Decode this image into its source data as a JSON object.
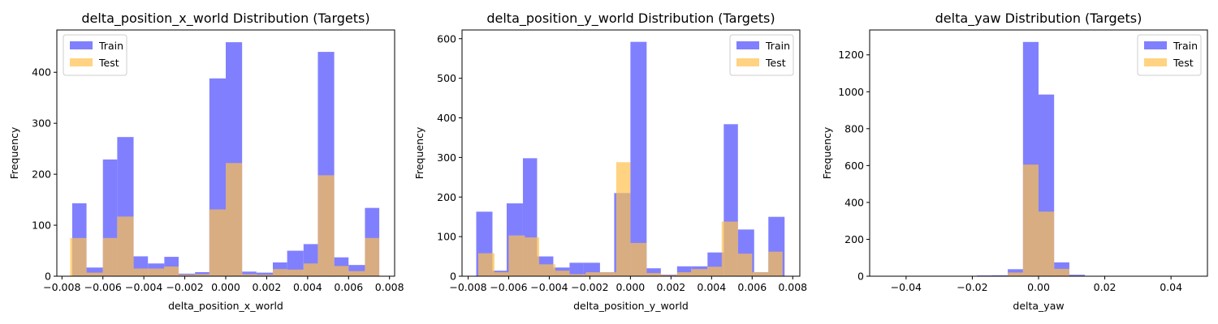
{
  "chart_data": [
    {
      "type": "bar",
      "title": "delta_position_x_world Distribution (Targets)",
      "xlabel": "delta_position_x_world",
      "ylabel": "Frequency",
      "xlim": [
        -0.00825,
        0.00825
      ],
      "ylim": [
        0,
        483
      ],
      "xticks": [
        -0.008,
        -0.006,
        -0.004,
        -0.002,
        0.0,
        0.002,
        0.004,
        0.006,
        0.008
      ],
      "xtick_labels": [
        "−0.008",
        "−0.006",
        "−0.004",
        "−0.002",
        "0.000",
        "0.002",
        "0.004",
        "0.006",
        "0.008"
      ],
      "yticks": [
        0,
        100,
        200,
        300,
        400
      ],
      "ytick_labels": [
        "0",
        "100",
        "200",
        "300",
        "400"
      ],
      "legend_position": "top-left",
      "series": [
        {
          "name": "Train",
          "color": "#8080ff",
          "bins": [
            [
              -0.0075,
              -0.0068,
              143
            ],
            [
              -0.0068,
              -0.006,
              17
            ],
            [
              -0.006,
              -0.0053,
              229
            ],
            [
              -0.0053,
              -0.0045,
              273
            ],
            [
              -0.0045,
              -0.0038,
              39
            ],
            [
              -0.0038,
              -0.003,
              25
            ],
            [
              -0.003,
              -0.0023,
              38
            ],
            [
              -0.0023,
              -0.0015,
              5
            ],
            [
              -0.0015,
              -0.0008,
              8
            ],
            [
              -0.0008,
              0.0,
              388
            ],
            [
              0.0,
              0.0008,
              459
            ],
            [
              0.0008,
              0.0015,
              9
            ],
            [
              0.0015,
              0.0023,
              7
            ],
            [
              0.0023,
              0.003,
              27
            ],
            [
              0.003,
              0.0038,
              50
            ],
            [
              0.0038,
              0.0045,
              63
            ],
            [
              0.0045,
              0.0053,
              440
            ],
            [
              0.0053,
              0.006,
              37
            ],
            [
              0.006,
              0.0068,
              22
            ],
            [
              0.0068,
              0.0075,
              134
            ]
          ]
        },
        {
          "name": "Test",
          "color": "#ffc04d",
          "bins": [
            [
              -0.0076,
              -0.0068,
              75
            ],
            [
              -0.0068,
              -0.006,
              7
            ],
            [
              -0.006,
              -0.0053,
              75
            ],
            [
              -0.0053,
              -0.0045,
              117
            ],
            [
              -0.0045,
              -0.0038,
              15
            ],
            [
              -0.0038,
              -0.003,
              15
            ],
            [
              -0.003,
              -0.0023,
              19
            ],
            [
              -0.0023,
              -0.0015,
              3
            ],
            [
              -0.0015,
              -0.0008,
              4
            ],
            [
              -0.0008,
              0.0,
              131
            ],
            [
              0.0,
              0.0008,
              222
            ],
            [
              0.0008,
              0.0015,
              4
            ],
            [
              0.0015,
              0.0023,
              3
            ],
            [
              0.0023,
              0.003,
              14
            ],
            [
              0.003,
              0.0038,
              13
            ],
            [
              0.0038,
              0.0045,
              25
            ],
            [
              0.0045,
              0.0053,
              198
            ],
            [
              0.0053,
              0.006,
              20
            ],
            [
              0.006,
              0.0068,
              10
            ],
            [
              0.0068,
              0.0075,
              75
            ]
          ]
        }
      ]
    },
    {
      "type": "bar",
      "title": "delta_position_y_world Distribution (Targets)",
      "xlabel": "delta_position_y_world",
      "ylabel": "Frequency",
      "xlim": [
        -0.0083,
        0.00835
      ],
      "ylim": [
        0,
        622
      ],
      "xticks": [
        -0.008,
        -0.006,
        -0.004,
        -0.002,
        0.0,
        0.002,
        0.004,
        0.006,
        0.008
      ],
      "xtick_labels": [
        "−0.008",
        "−0.006",
        "−0.004",
        "−0.002",
        "0.000",
        "0.002",
        "0.004",
        "0.006",
        "0.008"
      ],
      "yticks": [
        0,
        100,
        200,
        300,
        400,
        500,
        600
      ],
      "ytick_labels": [
        "0",
        "100",
        "200",
        "300",
        "400",
        "500",
        "600"
      ],
      "legend_position": "top-right",
      "series": [
        {
          "name": "Train",
          "color": "#8080ff",
          "bins": [
            [
              -0.0076,
              -0.0068,
              163
            ],
            [
              -0.0068,
              -0.0061,
              14
            ],
            [
              -0.0061,
              -0.0053,
              184
            ],
            [
              -0.0053,
              -0.0046,
              298
            ],
            [
              -0.0046,
              -0.0038,
              50
            ],
            [
              -0.0038,
              -0.003,
              22
            ],
            [
              -0.003,
              -0.0023,
              34
            ],
            [
              -0.0023,
              -0.0015,
              34
            ],
            [
              -0.0015,
              -0.0008,
              10
            ],
            [
              -0.0008,
              0.0,
              210
            ],
            [
              0.0,
              0.0008,
              592
            ],
            [
              0.0008,
              0.0015,
              20
            ],
            [
              0.0015,
              0.0023,
              4
            ],
            [
              0.0023,
              0.003,
              25
            ],
            [
              0.003,
              0.0038,
              25
            ],
            [
              0.0038,
              0.0046,
              60
            ],
            [
              0.0046,
              0.0053,
              384
            ],
            [
              0.0053,
              0.0061,
              118
            ],
            [
              0.0061,
              0.0068,
              10
            ],
            [
              0.0068,
              0.0076,
              150
            ]
          ]
        },
        {
          "name": "Test",
          "color": "#ffc04d",
          "bins": [
            [
              -0.0075,
              -0.0067,
              58
            ],
            [
              -0.0067,
              -0.006,
              10
            ],
            [
              -0.006,
              -0.0052,
              103
            ],
            [
              -0.0052,
              -0.0045,
              98
            ],
            [
              -0.0045,
              -0.0037,
              30
            ],
            [
              -0.0037,
              -0.003,
              14
            ],
            [
              -0.003,
              -0.0022,
              5
            ],
            [
              -0.0022,
              -0.0015,
              10
            ],
            [
              -0.0015,
              -0.0007,
              10
            ],
            [
              -0.0007,
              0.0,
              288
            ],
            [
              0.0,
              0.0008,
              84
            ],
            [
              0.0008,
              0.0015,
              8
            ],
            [
              0.0015,
              0.0023,
              3
            ],
            [
              0.0023,
              0.003,
              10
            ],
            [
              0.003,
              0.0038,
              18
            ],
            [
              0.0038,
              0.0045,
              24
            ],
            [
              0.0045,
              0.0053,
              138
            ],
            [
              0.0053,
              0.006,
              57
            ],
            [
              0.006,
              0.0068,
              10
            ],
            [
              0.0068,
              0.0075,
              62
            ]
          ]
        }
      ]
    },
    {
      "type": "bar",
      "title": "delta_yaw Distribution (Targets)",
      "xlabel": "delta_yaw",
      "ylabel": "Frequency",
      "xlim": [
        -0.051,
        0.051
      ],
      "ylim": [
        0,
        1335
      ],
      "xticks": [
        -0.04,
        -0.02,
        0.0,
        0.02,
        0.04
      ],
      "xtick_labels": [
        "−0.04",
        "−0.02",
        "0.00",
        "0.02",
        "0.04"
      ],
      "yticks": [
        0,
        200,
        400,
        600,
        800,
        1000,
        1200
      ],
      "ytick_labels": [
        "0",
        "200",
        "400",
        "600",
        "800",
        "1000",
        "1200"
      ],
      "legend_position": "top-right",
      "series": [
        {
          "name": "Train",
          "color": "#8080ff",
          "bins": [
            [
              -0.0466,
              -0.0419,
              2
            ],
            [
              -0.0419,
              -0.0373,
              2
            ],
            [
              -0.0373,
              -0.0326,
              1
            ],
            [
              -0.0326,
              -0.028,
              0
            ],
            [
              -0.028,
              -0.0233,
              1
            ],
            [
              -0.0233,
              -0.0186,
              2
            ],
            [
              -0.0186,
              -0.014,
              4
            ],
            [
              -0.014,
              -0.0093,
              5
            ],
            [
              -0.0093,
              -0.0047,
              38
            ],
            [
              -0.0047,
              0.0,
              1270
            ],
            [
              0.0,
              0.0047,
              985
            ],
            [
              0.0047,
              0.0093,
              75
            ],
            [
              0.0093,
              0.014,
              8
            ],
            [
              0.014,
              0.0186,
              1
            ],
            [
              0.0186,
              0.0233,
              2
            ],
            [
              0.0233,
              0.028,
              0
            ],
            [
              0.028,
              0.0326,
              0
            ],
            [
              0.0326,
              0.0373,
              1
            ],
            [
              0.0373,
              0.0419,
              2
            ],
            [
              0.0419,
              0.0466,
              2
            ]
          ]
        },
        {
          "name": "Test",
          "color": "#ffc04d",
          "bins": [
            [
              -0.042,
              -0.0373,
              1
            ],
            [
              -0.0373,
              -0.0326,
              1
            ],
            [
              -0.0326,
              -0.028,
              0
            ],
            [
              -0.028,
              -0.0233,
              0
            ],
            [
              -0.0233,
              -0.0186,
              1
            ],
            [
              -0.0186,
              -0.014,
              2
            ],
            [
              -0.014,
              -0.0093,
              2
            ],
            [
              -0.0093,
              -0.0047,
              20
            ],
            [
              -0.0047,
              0.0,
              605
            ],
            [
              0.0,
              0.0047,
              350
            ],
            [
              0.0047,
              0.0093,
              40
            ],
            [
              0.0093,
              0.014,
              3
            ],
            [
              0.014,
              0.0186,
              0
            ],
            [
              0.0186,
              0.0233,
              1
            ],
            [
              0.0233,
              0.028,
              0
            ],
            [
              0.028,
              0.0326,
              0
            ],
            [
              0.0326,
              0.0373,
              1
            ],
            [
              0.0373,
              0.0419,
              1
            ]
          ]
        }
      ]
    }
  ]
}
